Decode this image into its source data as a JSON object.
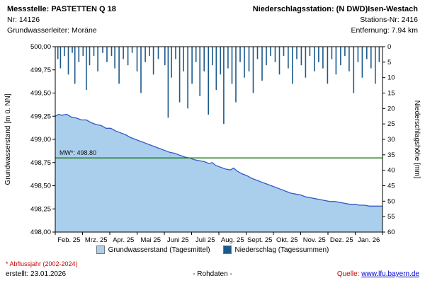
{
  "header": {
    "left": {
      "title": "Messstelle: PASTETTEN Q 18",
      "nr": "Nr: 14126",
      "aquifer": "Grundwasserleiter:  Moräne"
    },
    "right": {
      "title": "Niederschlagsstation: (N DWD)Isen-Westach",
      "station_nr": "Stations-Nr: 2416",
      "distance": "Entfernung: 7.94 km"
    }
  },
  "chart_data": {
    "type": "combo-area-bar",
    "title": "",
    "colors": {
      "area": "#aacfec",
      "line": "#3358c8",
      "bar": "#1c5a8c",
      "mean": "#1e7d1e",
      "axis": "#000000"
    },
    "left_axis": {
      "label": "Grundwasserstand [m ü. NN]",
      "min": 498.0,
      "max": 500.0,
      "tick_values": [
        498.0,
        498.25,
        498.5,
        498.75,
        499.0,
        499.25,
        499.5,
        499.75,
        500.0
      ],
      "ticks": [
        "498,00",
        "498,25",
        "498,50",
        "498,75",
        "499,00",
        "499,25",
        "499,50",
        "499,75",
        "500,00"
      ]
    },
    "right_axis": {
      "label": "Niederschlagshöhe [mm]",
      "min": 0,
      "max": 60,
      "inverted": true,
      "tick_values": [
        0,
        5,
        10,
        15,
        20,
        25,
        30,
        35,
        40,
        45,
        50,
        55,
        60
      ]
    },
    "x_labels": [
      "Feb. 25",
      "Mrz. 25",
      "Apr. 25",
      "Mai 25",
      "Juni 25",
      "Juli 25",
      "Aug. 25",
      "Sept. 25",
      "Okt. 25",
      "Nov. 25",
      "Dez. 25",
      "Jan. 26"
    ],
    "mean_line": {
      "label": "MW*: 498.80",
      "value": 498.8
    },
    "groundwater": {
      "name": "Grundwasserstand (Tagesmittel)",
      "unit": "m ü. NN",
      "points": [
        [
          0.0,
          499.25
        ],
        [
          0.01,
          499.27
        ],
        [
          0.02,
          499.26
        ],
        [
          0.035,
          499.27
        ],
        [
          0.05,
          499.24
        ],
        [
          0.065,
          499.23
        ],
        [
          0.08,
          499.21
        ],
        [
          0.095,
          499.21
        ],
        [
          0.11,
          499.18
        ],
        [
          0.125,
          499.16
        ],
        [
          0.14,
          499.15
        ],
        [
          0.155,
          499.12
        ],
        [
          0.17,
          499.12
        ],
        [
          0.185,
          499.09
        ],
        [
          0.2,
          499.07
        ],
        [
          0.215,
          499.05
        ],
        [
          0.23,
          499.02
        ],
        [
          0.245,
          499.0
        ],
        [
          0.26,
          498.98
        ],
        [
          0.275,
          498.96
        ],
        [
          0.29,
          498.94
        ],
        [
          0.305,
          498.92
        ],
        [
          0.32,
          498.9
        ],
        [
          0.335,
          498.88
        ],
        [
          0.35,
          498.86
        ],
        [
          0.365,
          498.85
        ],
        [
          0.38,
          498.83
        ],
        [
          0.395,
          498.81
        ],
        [
          0.41,
          498.8
        ],
        [
          0.425,
          498.78
        ],
        [
          0.44,
          498.77
        ],
        [
          0.455,
          498.76
        ],
        [
          0.47,
          498.74
        ],
        [
          0.48,
          498.75
        ],
        [
          0.49,
          498.72
        ],
        [
          0.505,
          498.7
        ],
        [
          0.52,
          498.68
        ],
        [
          0.535,
          498.67
        ],
        [
          0.545,
          498.69
        ],
        [
          0.555,
          498.66
        ],
        [
          0.57,
          498.63
        ],
        [
          0.585,
          498.61
        ],
        [
          0.6,
          498.58
        ],
        [
          0.615,
          498.56
        ],
        [
          0.63,
          498.54
        ],
        [
          0.645,
          498.52
        ],
        [
          0.66,
          498.5
        ],
        [
          0.675,
          498.48
        ],
        [
          0.69,
          498.46
        ],
        [
          0.705,
          498.44
        ],
        [
          0.72,
          498.42
        ],
        [
          0.735,
          498.41
        ],
        [
          0.75,
          498.4
        ],
        [
          0.765,
          498.38
        ],
        [
          0.78,
          498.37
        ],
        [
          0.795,
          498.36
        ],
        [
          0.81,
          498.35
        ],
        [
          0.825,
          498.34
        ],
        [
          0.84,
          498.33
        ],
        [
          0.855,
          498.33
        ],
        [
          0.87,
          498.32
        ],
        [
          0.885,
          498.31
        ],
        [
          0.9,
          498.3
        ],
        [
          0.915,
          498.3
        ],
        [
          0.93,
          498.29
        ],
        [
          0.945,
          498.29
        ],
        [
          0.96,
          498.28
        ],
        [
          0.975,
          498.28
        ],
        [
          0.99,
          498.28
        ],
        [
          1.0,
          498.28
        ]
      ]
    },
    "precipitation": {
      "name": "Niederschlag (Tagessummen)",
      "unit": "mm",
      "bars": [
        [
          0.008,
          4
        ],
        [
          0.016,
          7
        ],
        [
          0.028,
          3
        ],
        [
          0.04,
          9
        ],
        [
          0.052,
          2
        ],
        [
          0.06,
          12
        ],
        [
          0.072,
          5
        ],
        [
          0.085,
          3
        ],
        [
          0.095,
          14
        ],
        [
          0.105,
          6
        ],
        [
          0.118,
          3
        ],
        [
          0.13,
          8
        ],
        [
          0.145,
          2
        ],
        [
          0.158,
          5
        ],
        [
          0.172,
          3
        ],
        [
          0.182,
          7
        ],
        [
          0.195,
          12
        ],
        [
          0.208,
          4
        ],
        [
          0.222,
          6
        ],
        [
          0.235,
          2
        ],
        [
          0.25,
          8
        ],
        [
          0.262,
          15
        ],
        [
          0.275,
          5
        ],
        [
          0.288,
          3
        ],
        [
          0.3,
          9
        ],
        [
          0.315,
          4
        ],
        [
          0.335,
          6
        ],
        [
          0.345,
          23
        ],
        [
          0.355,
          10
        ],
        [
          0.368,
          4
        ],
        [
          0.38,
          18
        ],
        [
          0.392,
          8
        ],
        [
          0.405,
          20
        ],
        [
          0.418,
          12
        ],
        [
          0.43,
          5
        ],
        [
          0.442,
          16
        ],
        [
          0.455,
          8
        ],
        [
          0.468,
          22
        ],
        [
          0.48,
          6
        ],
        [
          0.492,
          14
        ],
        [
          0.505,
          9
        ],
        [
          0.515,
          25
        ],
        [
          0.528,
          7
        ],
        [
          0.54,
          12
        ],
        [
          0.552,
          18
        ],
        [
          0.565,
          5
        ],
        [
          0.578,
          10
        ],
        [
          0.592,
          8
        ],
        [
          0.605,
          15
        ],
        [
          0.618,
          4
        ],
        [
          0.632,
          11
        ],
        [
          0.645,
          6
        ],
        [
          0.658,
          3
        ],
        [
          0.672,
          5
        ],
        [
          0.685,
          9
        ],
        [
          0.698,
          3
        ],
        [
          0.712,
          7
        ],
        [
          0.725,
          12
        ],
        [
          0.738,
          4
        ],
        [
          0.752,
          6
        ],
        [
          0.765,
          10
        ],
        [
          0.778,
          3
        ],
        [
          0.792,
          8
        ],
        [
          0.805,
          5
        ],
        [
          0.818,
          7
        ],
        [
          0.832,
          12
        ],
        [
          0.845,
          4
        ],
        [
          0.858,
          9
        ],
        [
          0.872,
          6
        ],
        [
          0.885,
          3
        ],
        [
          0.898,
          8
        ],
        [
          0.912,
          15
        ],
        [
          0.925,
          5
        ],
        [
          0.938,
          10
        ],
        [
          0.952,
          4
        ],
        [
          0.965,
          7
        ],
        [
          0.978,
          12
        ],
        [
          0.99,
          5
        ]
      ]
    }
  },
  "legend": {
    "items": [
      {
        "label": "Grundwasserstand (Tagesmittel)",
        "color": "#aacfec"
      },
      {
        "label": "Niederschlag (Tagessummen)",
        "color": "#1c5a8c"
      }
    ]
  },
  "footer": {
    "note": "* Abflussjahr (2002-2024)",
    "created": "erstellt:  23.01.2026",
    "center": "- Rohdaten -",
    "source_label": "Quelle:",
    "source_link": "www.lfu.bayern.de"
  }
}
